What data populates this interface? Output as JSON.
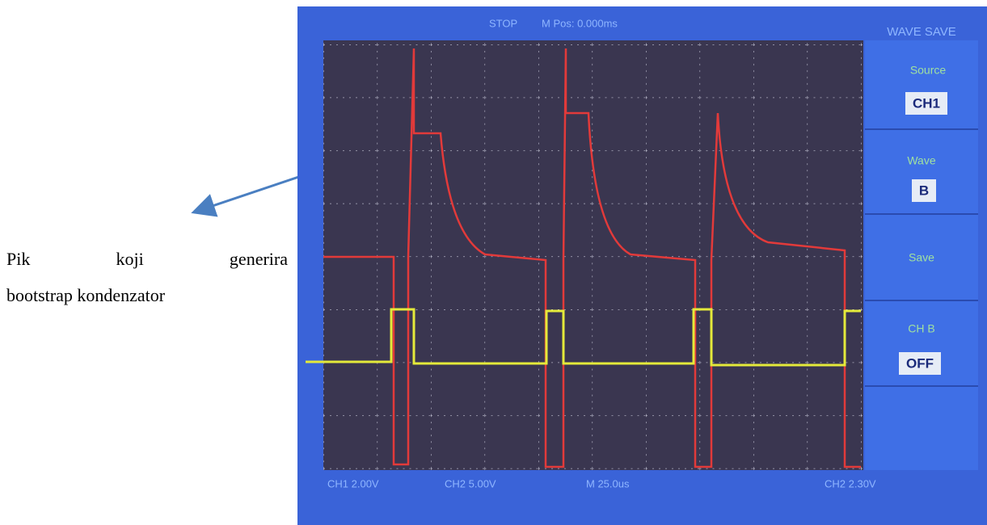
{
  "caption": {
    "lines": [
      "Pik koji generira",
      "bootstrap kondenzator"
    ]
  },
  "scope": {
    "top_bar": {
      "status": "STOP",
      "time_base": "M Pos: 0.000ms",
      "menu_title": "WAVE SAVE"
    },
    "menu": [
      {
        "label": "Source",
        "value": "CH1"
      },
      {
        "label": "Wave",
        "value": "B"
      },
      {
        "label": "Save"
      },
      {
        "label": "CH B",
        "value": "OFF"
      }
    ],
    "bottom_bar": {
      "ch1": "CH1 2.00V",
      "ch2": "CH2 5.00V",
      "time": "M 25.0us",
      "trigger": "CH2 2.30V"
    }
  }
}
